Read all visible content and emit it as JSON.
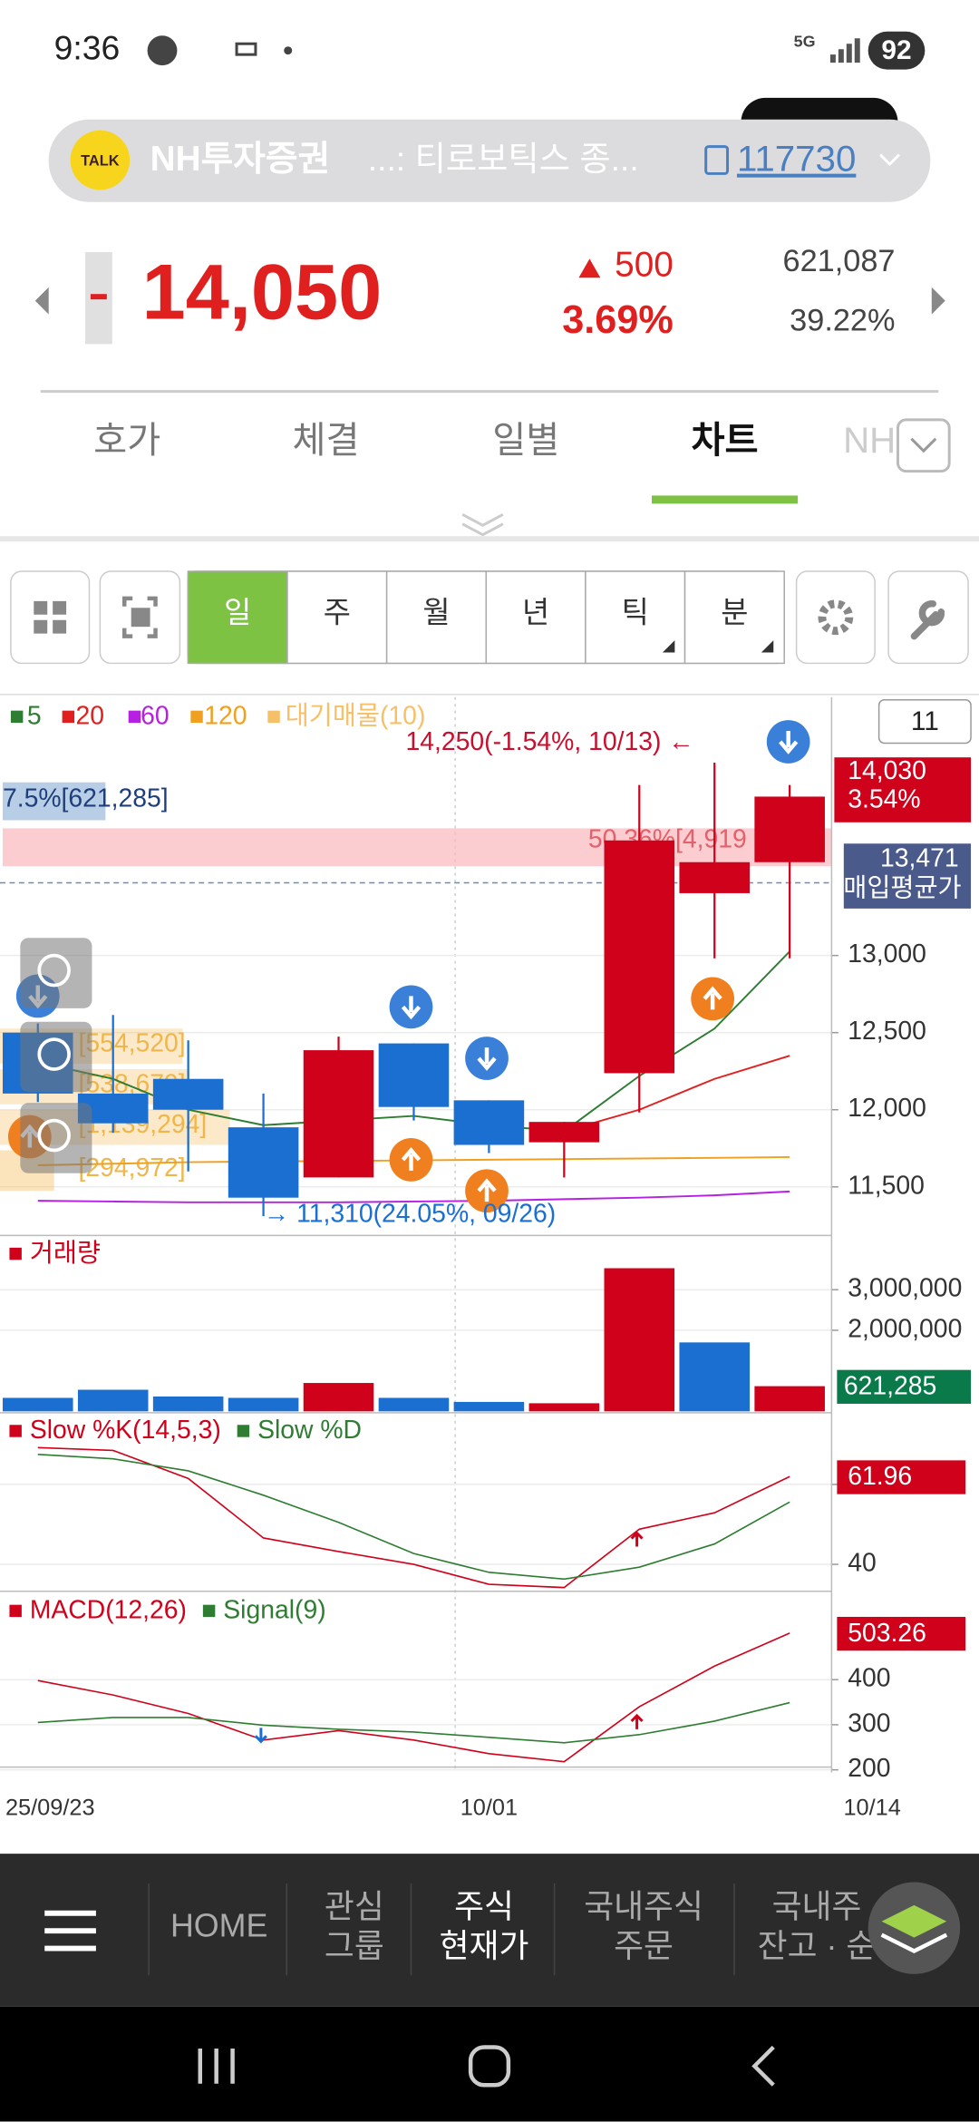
{
  "status_bar": {
    "time": "9:36",
    "network": "5G",
    "battery": "92"
  },
  "notification": {
    "app_icon": "TALK",
    "title": "NH투자증권",
    "text": "...: 티로보틱스 종...",
    "code": "117730"
  },
  "quote": {
    "price": "14,050",
    "change": "500",
    "change_rate": "3.69%",
    "volume": "621,087",
    "ratio": "39.22%"
  },
  "tabs": {
    "items": [
      "호가",
      "체결",
      "일별",
      "차트",
      "NH"
    ],
    "active": 3
  },
  "toolbar": {
    "periods": [
      "일",
      "주",
      "월",
      "년",
      "틱",
      "분"
    ],
    "selected": 0,
    "visible_count": "11"
  },
  "chart_data": [
    {
      "type": "candlestick",
      "categories": [
        "25/09/23",
        null,
        null,
        null,
        null,
        null,
        "10/01",
        null,
        null,
        null,
        "10/14"
      ],
      "open": [
        12500,
        12105,
        12200,
        11886,
        11561,
        12430,
        12061,
        11789,
        12237,
        13404,
        13605
      ],
      "high": [
        12560,
        12614,
        12450,
        12105,
        12474,
        12430,
        12061,
        11921,
        14105,
        14250,
        14105
      ],
      "low": [
        12050,
        11850,
        11600,
        11310,
        11561,
        11930,
        11719,
        11561,
        11982,
        12982,
        12982
      ],
      "close": [
        12105,
        11912,
        12000,
        11430,
        12386,
        12018,
        11772,
        11921,
        13746,
        13605,
        14030
      ],
      "up_color": "#d0021b",
      "down_color": "#1a6fd0",
      "series": [
        {
          "name": "5",
          "color": "#2e7d32",
          "values": [
            12307,
            12200,
            12000,
            11900,
            11930,
            11960,
            11900,
            11860,
            12219,
            12526,
            13026
          ]
        },
        {
          "name": "20",
          "color": "#e0201f",
          "values": [
            null,
            null,
            null,
            null,
            null,
            null,
            null,
            11860,
            12000,
            12200,
            12350
          ]
        },
        {
          "name": "60",
          "color": "#b620e0",
          "values": [
            11410,
            11405,
            11400,
            11400,
            11400,
            11405,
            11410,
            11420,
            11430,
            11445,
            11470
          ]
        },
        {
          "name": "120",
          "color": "#f0a020",
          "values": [
            11640,
            11650,
            11660,
            11665,
            11668,
            11672,
            11676,
            11680,
            11684,
            11688,
            11693
          ]
        }
      ],
      "volume_profile": {
        "name": "대기매물(10)",
        "color": "#f6c068",
        "labels": [
          "7.5%[621,285]",
          "50.36%[4,919",
          "[554,520]",
          "[538,679]",
          "[1,139,294]",
          "[294,972]"
        ]
      },
      "ylim": [
        11211,
        14675
      ],
      "yticks": [
        {
          "value": 11500,
          "label": "11,500"
        },
        {
          "value": 12000,
          "label": "12,000"
        },
        {
          "value": 12500,
          "label": "12,500"
        },
        {
          "value": 13000,
          "label": "13,000"
        }
      ],
      "grid": true,
      "high_note": "14,250(-1.54%, 10/13) ←",
      "low_note": "→ 11,310(24.05%, 09/26)",
      "current": {
        "value": 14030,
        "label": "14,030",
        "rate": "3.54%"
      },
      "avg_cost": {
        "value": 13471,
        "label": "13,471",
        "name": "매입평균가"
      }
    },
    {
      "type": "bar",
      "title": "거래량",
      "values": [
        333000,
        533000,
        367000,
        333000,
        700000,
        333000,
        233000,
        200000,
        3530000,
        1700000,
        621285
      ],
      "value_labels": [
        null,
        null,
        null,
        null,
        null,
        null,
        null,
        null,
        null,
        null,
        "621,285"
      ],
      "colors": [
        "#1a6fd0",
        "#1a6fd0",
        "#1a6fd0",
        "#1a6fd0",
        "#d0021b",
        "#1a6fd0",
        "#1a6fd0",
        "#d0021b",
        "#d0021b",
        "#1a6fd0",
        "#d0021b"
      ],
      "ylim": [
        0,
        4270000
      ],
      "yticks": [
        {
          "value": 2000000,
          "label": "2,000,000"
        },
        {
          "value": 3000000,
          "label": "3,000,000"
        }
      ],
      "grid": true
    },
    {
      "type": "line",
      "series": [
        {
          "name": "Slow %K(14,5,3)",
          "color": "#d0021b",
          "values": [
            69.2,
            68.5,
            61.5,
            46.6,
            43.2,
            40,
            35,
            34.2,
            48.8,
            52.9,
            61.96
          ]
        },
        {
          "name": "Slow %D",
          "color": "#2e7d32",
          "values": [
            67.5,
            66.4,
            63.4,
            57.3,
            50.5,
            42.7,
            38,
            36.3,
            39.3,
            45.1,
            55.6
          ]
        }
      ],
      "ylim": [
        33.6,
        77.6
      ],
      "yticks": [
        40,
        60
      ],
      "grid": true
    },
    {
      "type": "line",
      "series": [
        {
          "name": "MACD(12,26)",
          "color": "#d0021b",
          "values": [
            398,
            366,
            325,
            266,
            287,
            266,
            236,
            218,
            340,
            430,
            503.26
          ]
        },
        {
          "name": "Signal(9)",
          "color": "#2e7d32",
          "values": [
            305,
            316,
            316,
            299,
            290,
            284,
            272,
            260,
            278,
            308,
            349
          ]
        }
      ],
      "ylim": [
        194,
        590
      ],
      "yticks": [
        200,
        300,
        400
      ],
      "grid": true
    }
  ],
  "bottom_nav": {
    "items": [
      [
        "HOME"
      ],
      [
        "관심",
        "그룹"
      ],
      [
        "주식",
        "현재가"
      ],
      [
        "국내주식",
        "주문"
      ],
      [
        "국내주",
        "잔고 · 순"
      ]
    ],
    "active": 2
  }
}
